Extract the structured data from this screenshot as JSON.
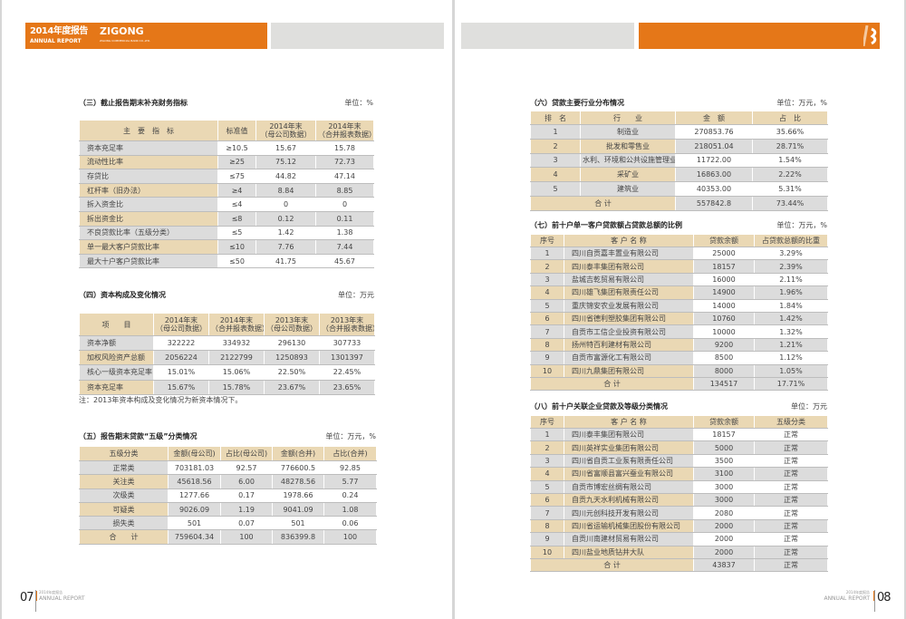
{
  "header": {
    "logo_cn": "2014年度报告",
    "logo_en": "ANNUAL REPORT",
    "logo_brand": "ZIGONG",
    "logo_sub": "ZIGONG COMMERCIAL BANK CO.,LTD.",
    "accent": "#e57718",
    "gray": "#dfdfdd"
  },
  "footer": {
    "left_page": "07",
    "right_page": "08",
    "label_cn": "2014年度报告",
    "label_en": "ANNUAL REPORT"
  },
  "tables": [
    {
      "title": "（三）截止报告期末补充财务指标",
      "unit": "单位：%",
      "headers": [
        "主　要　指　标",
        "标准值",
        "2014年末\n（母公司数据）",
        "2014年末\n（合并报表数据）"
      ],
      "rows": [
        [
          "资本充足率",
          "≥10.5",
          "15.67",
          "15.78"
        ],
        [
          "流动性比率",
          "≥25",
          "75.12",
          "72.73"
        ],
        [
          "存贷比",
          "≤75",
          "44.82",
          "47.14"
        ],
        [
          "杠杆率（旧办法）",
          "≥4",
          "8.84",
          "8.85"
        ],
        [
          "拆入资金比",
          "≤4",
          "0",
          "0"
        ],
        [
          "拆出资金比",
          "≤8",
          "0.12",
          "0.11"
        ],
        [
          "不良贷款比率（五级分类）",
          "≤5",
          "1.42",
          "1.38"
        ],
        [
          "单一最大客户贷款比率",
          "≤10",
          "7.76",
          "7.44"
        ],
        [
          "最大十户客户贷款比率",
          "≤50",
          "41.75",
          "45.67"
        ]
      ]
    },
    {
      "title": "（四）资本构成及变化情况",
      "unit": "单位：万元",
      "headers": [
        "项　　目",
        "2014年末\n（母公司数据）",
        "2014年末\n（合并报表数据）",
        "2013年末\n（母公司数据）",
        "2013年末\n（合并报表数据）"
      ],
      "rows": [
        [
          "资本净额",
          "322222",
          "334932",
          "296130",
          "307733"
        ],
        [
          "加权风险资产总额",
          "2056224",
          "2122799",
          "1250893",
          "1301397"
        ],
        [
          "核心一级资本充足率",
          "15.01%",
          "15.06%",
          "22.50%",
          "22.45%"
        ],
        [
          "资本充足率",
          "15.67%",
          "15.78%",
          "23.67%",
          "23.65%"
        ]
      ],
      "note": "注：2013年资本构成及变化情况为新资本情况下。"
    },
    {
      "title": "（五）报告期末贷款“五级”分类情况",
      "unit": "单位：万元，%",
      "headers": [
        "五级分类",
        "金额(母公司)",
        "占比(母公司)",
        "金额(合并)",
        "占比(合并)"
      ],
      "rows": [
        [
          "正常类",
          "703181.03",
          "92.57",
          "776600.5",
          "92.85"
        ],
        [
          "关注类",
          "45618.56",
          "6.00",
          "48278.56",
          "5.77"
        ],
        [
          "次级类",
          "1277.66",
          "0.17",
          "1978.66",
          "0.24"
        ],
        [
          "可疑类",
          "9026.09",
          "1.19",
          "9041.09",
          "1.08"
        ],
        [
          "损失类",
          "501",
          "0.07",
          "501",
          "0.06"
        ],
        [
          "合　　计",
          "759604.34",
          "100",
          "836399.8",
          "100"
        ]
      ]
    },
    {
      "title": "（六）贷款主要行业分布情况",
      "unit": "单位：万元，%",
      "headers": [
        "排　名",
        "行　　业",
        "金　额",
        "占　比"
      ],
      "rows": [
        [
          "1",
          "制造业",
          "270853.76",
          "35.66%"
        ],
        [
          "2",
          "批发和零售业",
          "218051.04",
          "28.71%"
        ],
        [
          "3",
          "水利、环境和公共设施管理业",
          "11722.00",
          "1.54%"
        ],
        [
          "4",
          "采矿业",
          "16863.00",
          "2.22%"
        ],
        [
          "5",
          "建筑业",
          "40353.00",
          "5.31%"
        ]
      ],
      "total": [
        "合 计",
        "557842.8",
        "73.44%"
      ]
    },
    {
      "title": "（七）前十户单一客户贷款额占贷款总额的比例",
      "unit": "单位：万元，%",
      "headers": [
        "序号",
        "客 户 名 称",
        "贷款余额",
        "占贷款总额的比重"
      ],
      "rows": [
        [
          "1",
          "四川自贡嘉丰置业有限公司",
          "25000",
          "3.29%"
        ],
        [
          "2",
          "四川泰丰集团有限公司",
          "18157",
          "2.39%"
        ],
        [
          "3",
          "盐城吉乾贸易有限公司",
          "16000",
          "2.11%"
        ],
        [
          "4",
          "四川雄飞集团有限责任公司",
          "14900",
          "1.96%"
        ],
        [
          "5",
          "重庆锦安农业发展有限公司",
          "14000",
          "1.84%"
        ],
        [
          "6",
          "四川省德利塑胶集团有限公司",
          "10760",
          "1.42%"
        ],
        [
          "7",
          "自贡市工信企业投资有限公司",
          "10000",
          "1.32%"
        ],
        [
          "8",
          "扬州特百利建材有限公司",
          "9200",
          "1.21%"
        ],
        [
          "9",
          "自贡市富源化工有限公司",
          "8500",
          "1.12%"
        ],
        [
          "10",
          "四川九鼎集团有限公司",
          "8000",
          "1.05%"
        ]
      ],
      "total": [
        "合 计",
        "134517",
        "17.71%"
      ]
    },
    {
      "title": "（八）前十户关联企业贷款及等级分类情况",
      "unit": "单位：万元",
      "headers": [
        "序号",
        "客 户 名 称",
        "贷款余额",
        "五级分类"
      ],
      "rows": [
        [
          "1",
          "四川泰丰集团有限公司",
          "18157",
          "正常"
        ],
        [
          "2",
          "四川英祥实业集团有限公司",
          "5000",
          "正常"
        ],
        [
          "3",
          "四川省自贡工业泵有限责任公司",
          "3500",
          "正常"
        ],
        [
          "4",
          "四川省富顺县富兴蚕业有限公司",
          "3100",
          "正常"
        ],
        [
          "5",
          "自贡市博宏丝绸有限公司",
          "3000",
          "正常"
        ],
        [
          "6",
          "自贡九天水利机械有限公司",
          "3000",
          "正常"
        ],
        [
          "7",
          "四川元创科技开发有限公司",
          "2080",
          "正常"
        ],
        [
          "8",
          "四川省运输机械集团股份有限公司",
          "2000",
          "正常"
        ],
        [
          "9",
          "自贡川南建材贸易有限公司",
          "2000",
          "正常"
        ],
        [
          "10",
          "四川盐业地质钻井大队",
          "2000",
          "正常"
        ]
      ],
      "total": [
        "合 计",
        "43837",
        "正常"
      ]
    }
  ]
}
